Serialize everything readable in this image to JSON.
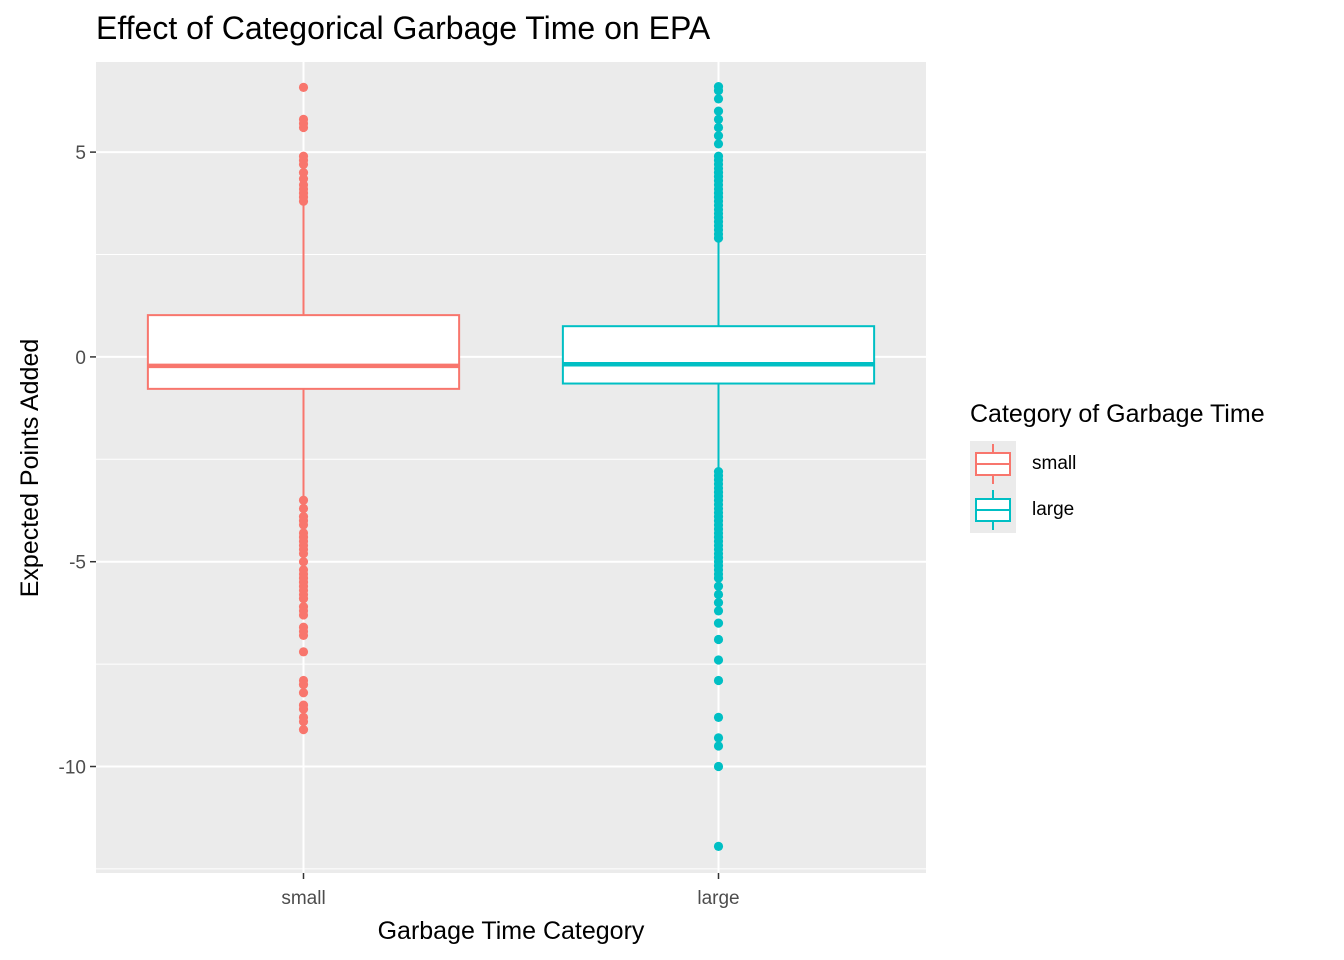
{
  "chart_data": {
    "type": "boxplot",
    "title": "Effect of Categorical Garbage Time on EPA",
    "xlabel": "Garbage Time Category",
    "ylabel": "Expected Points Added",
    "ylim": [
      -12.6,
      7.2
    ],
    "y_ticks": [
      5,
      0,
      -5,
      -10
    ],
    "y_tick_labels": [
      "5",
      "0",
      "-5",
      "-10"
    ],
    "grid": true,
    "legend": {
      "title": "Category of Garbage Time",
      "position": "right",
      "entries": [
        "small",
        "large"
      ]
    },
    "categories": [
      "small",
      "large"
    ],
    "series": [
      {
        "name": "small",
        "color": "#F8766D",
        "q1": -0.78,
        "median": -0.22,
        "q3": 1.02,
        "whisker_low": -3.5,
        "whisker_high": 3.75,
        "outliers": [
          6.58,
          5.8,
          5.7,
          5.6,
          4.9,
          4.8,
          4.7,
          4.5,
          4.35,
          4.2,
          4.1,
          4.0,
          3.9,
          3.8,
          -3.5,
          -3.7,
          -3.9,
          -4.0,
          -4.1,
          -4.3,
          -4.4,
          -4.5,
          -4.6,
          -4.7,
          -4.8,
          -5.0,
          -5.2,
          -5.3,
          -5.4,
          -5.5,
          -5.6,
          -5.7,
          -5.8,
          -5.9,
          -6.1,
          -6.2,
          -6.3,
          -6.6,
          -6.7,
          -6.8,
          -7.2,
          -7.9,
          -8.0,
          -8.2,
          -8.5,
          -8.6,
          -8.8,
          -8.9,
          -9.1
        ]
      },
      {
        "name": "large",
        "color": "#00BFC4",
        "q1": -0.65,
        "median": -0.18,
        "q3": 0.75,
        "whisker_low": -2.75,
        "whisker_high": 2.85,
        "outliers": [
          6.6,
          6.5,
          6.3,
          6.0,
          5.8,
          5.6,
          5.4,
          5.2,
          4.9,
          4.8,
          4.7,
          4.6,
          4.5,
          4.4,
          4.3,
          4.2,
          4.1,
          4.0,
          3.9,
          3.8,
          3.7,
          3.6,
          3.5,
          3.4,
          3.3,
          3.2,
          3.1,
          3.0,
          2.9,
          -2.8,
          -2.9,
          -3.0,
          -3.1,
          -3.2,
          -3.3,
          -3.4,
          -3.5,
          -3.6,
          -3.7,
          -3.8,
          -3.9,
          -4.0,
          -4.1,
          -4.2,
          -4.3,
          -4.4,
          -4.5,
          -4.6,
          -4.7,
          -4.8,
          -4.9,
          -5.0,
          -5.1,
          -5.2,
          -5.3,
          -5.4,
          -5.6,
          -5.8,
          -6.0,
          -6.2,
          -6.5,
          -6.9,
          -7.4,
          -7.9,
          -8.8,
          -9.3,
          -9.5,
          -10.0,
          -11.95
        ]
      }
    ]
  }
}
